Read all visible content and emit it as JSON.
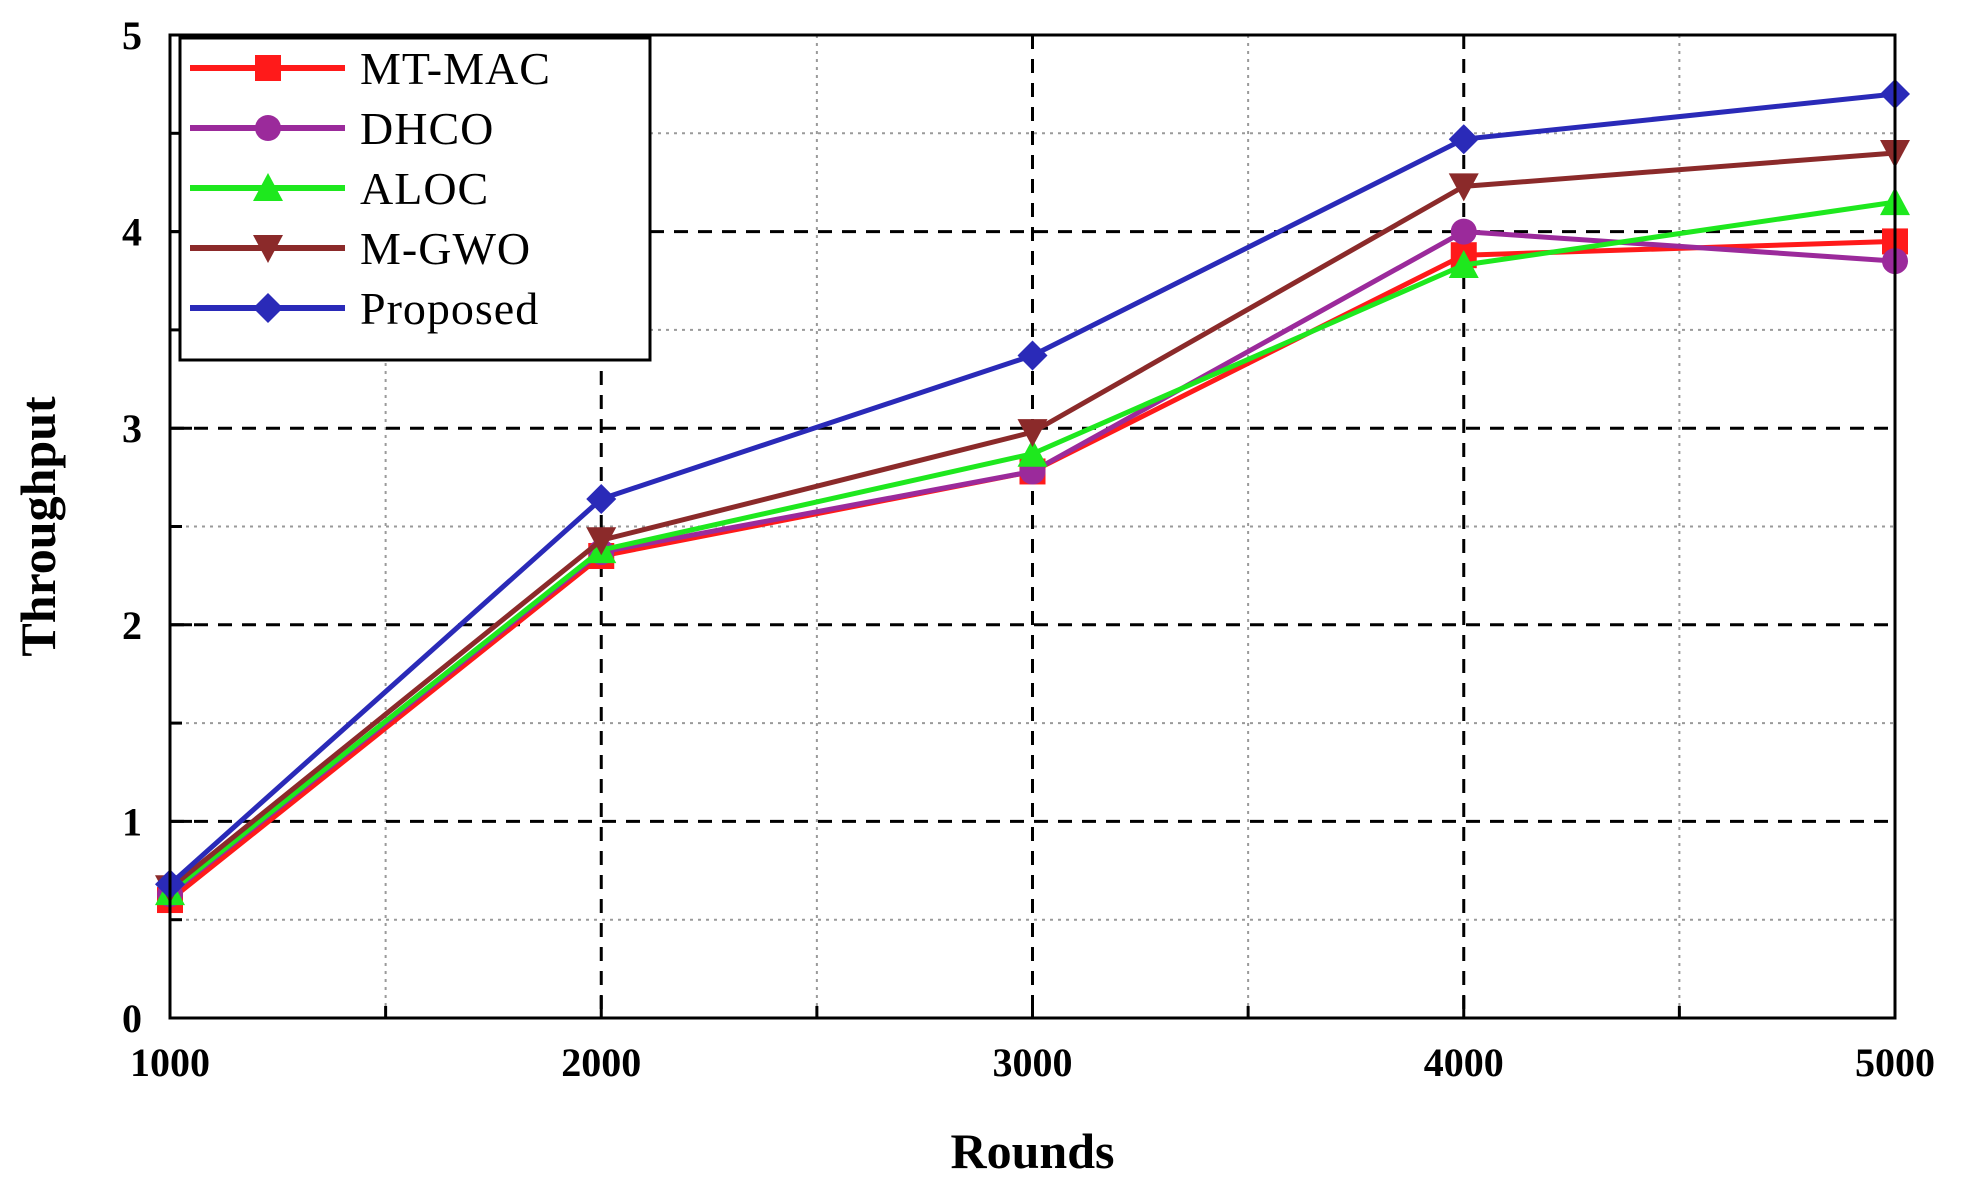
{
  "chart_data": {
    "type": "line",
    "xlabel": "Rounds",
    "ylabel": "Throughput",
    "x": [
      1000,
      2000,
      3000,
      4000,
      5000
    ],
    "xlim": [
      1000,
      5000
    ],
    "ylim": [
      0,
      5
    ],
    "x_ticks": [
      "1000",
      "2000",
      "3000",
      "4000",
      "5000"
    ],
    "y_ticks": [
      "0",
      "1",
      "2",
      "3",
      "4",
      "5"
    ],
    "grid": true,
    "legend_position": "top-left",
    "series": [
      {
        "name": "MT-MAC",
        "values": [
          0.6,
          2.35,
          2.78,
          3.88,
          3.95
        ],
        "color": "#ff1a1a",
        "marker": "square"
      },
      {
        "name": "DHCO",
        "values": [
          0.63,
          2.37,
          2.78,
          4.0,
          3.85
        ],
        "color": "#9b2a9b",
        "marker": "circle"
      },
      {
        "name": "ALOC",
        "values": [
          0.64,
          2.38,
          2.87,
          3.83,
          4.15
        ],
        "color": "#1ee81e",
        "marker": "triangle-up"
      },
      {
        "name": "M-GWO",
        "values": [
          0.66,
          2.43,
          2.98,
          4.23,
          4.4
        ],
        "color": "#8b2a2a",
        "marker": "triangle-down"
      },
      {
        "name": "Proposed",
        "values": [
          0.68,
          2.64,
          3.37,
          4.47,
          4.7
        ],
        "color": "#2a2ab8",
        "marker": "diamond"
      }
    ]
  }
}
